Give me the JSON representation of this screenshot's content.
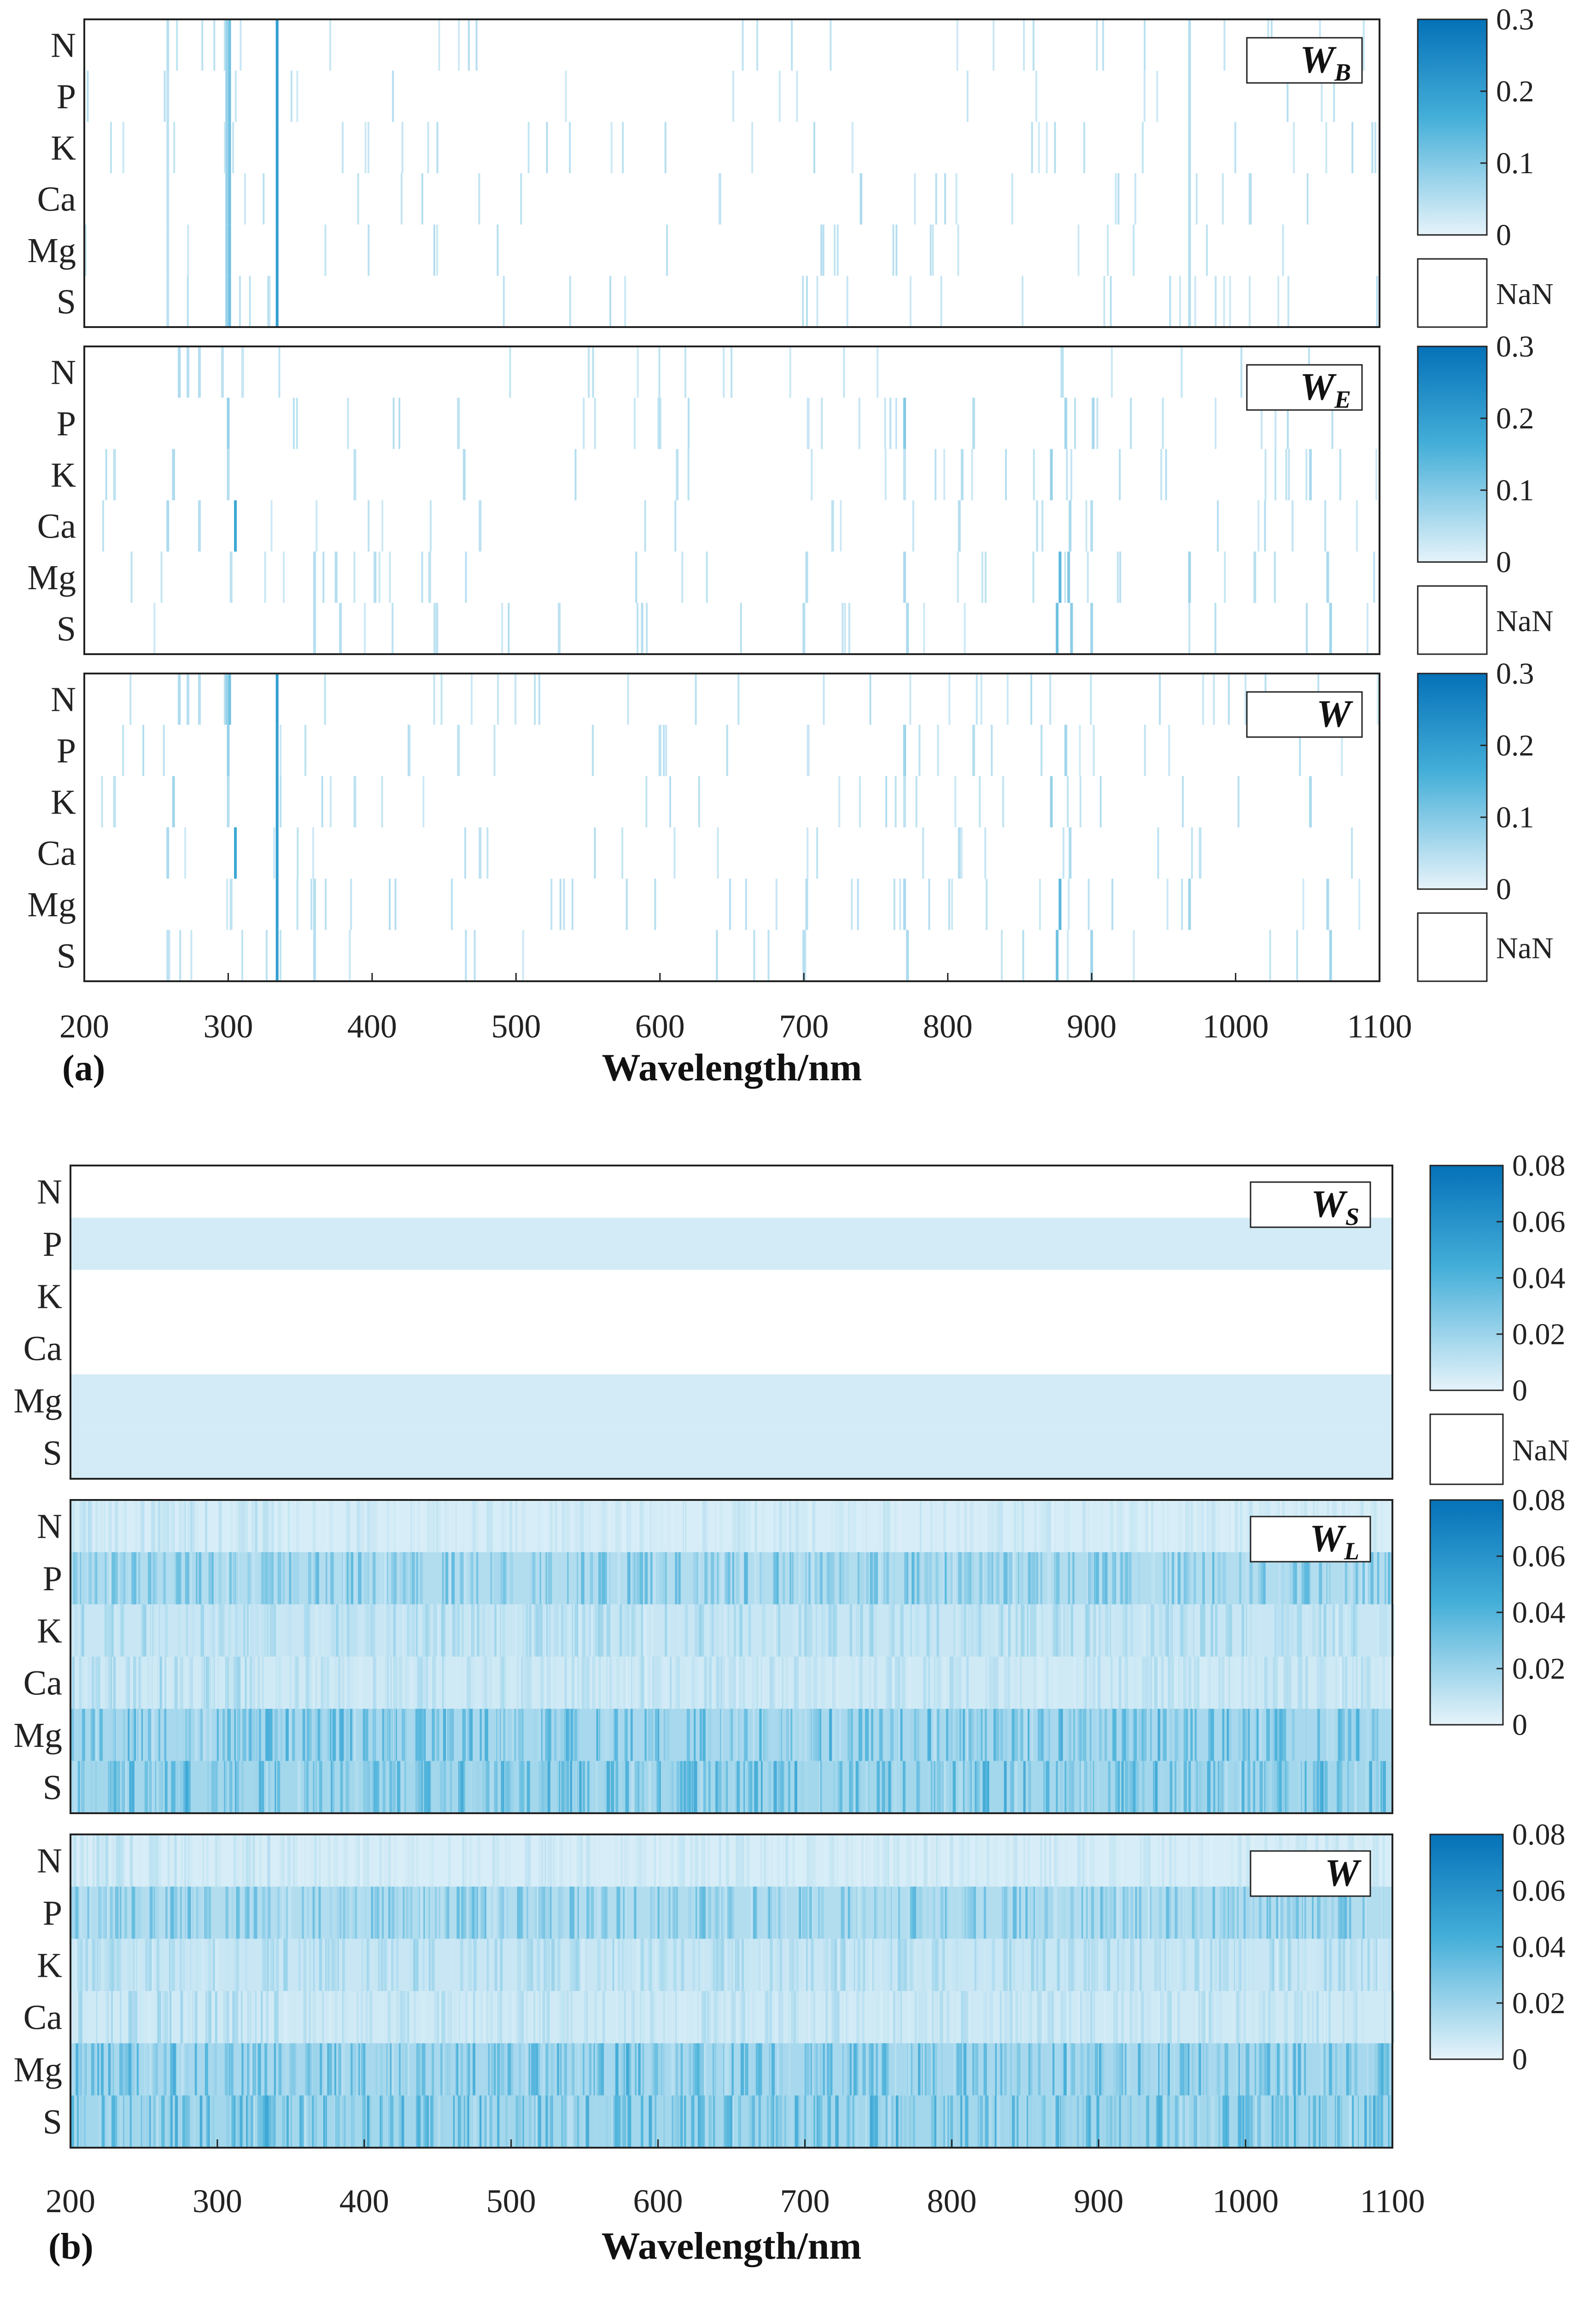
{
  "chart_data": [
    {
      "panel_label": "(a)",
      "type": "heatmap",
      "xlabel": "Wavelength/nm",
      "xlim": [
        200,
        1100
      ],
      "x_ticks": [
        "200",
        "300",
        "400",
        "500",
        "600",
        "700",
        "800",
        "900",
        "1000",
        "1100"
      ],
      "rows": [
        "N",
        "P",
        "K",
        "Ca",
        "Mg",
        "S"
      ],
      "colorbar": {
        "min": 0,
        "max": 0.3,
        "ticks": [
          "0.3",
          "0.2",
          "0.1",
          "0"
        ],
        "nan_label": "NaN"
      },
      "subplots": [
        {
          "legend_main": "W",
          "legend_sub": "B",
          "values": [
            [
              [
                258,
                0.04
              ],
              [
                299,
                0.08
              ],
              [
                301,
                0.12
              ],
              [
                334,
                0.2
              ],
              [
                968,
                0.05
              ]
            ],
            [
              [
                258,
                0.04
              ],
              [
                299,
                0.08
              ],
              [
                301,
                0.12
              ],
              [
                334,
                0.2
              ],
              [
                968,
                0.05
              ]
            ],
            [
              [
                258,
                0.04
              ],
              [
                299,
                0.08
              ],
              [
                301,
                0.12
              ],
              [
                334,
                0.2
              ],
              [
                968,
                0.05
              ]
            ],
            [
              [
                258,
                0.04
              ],
              [
                299,
                0.08
              ],
              [
                301,
                0.12
              ],
              [
                334,
                0.2
              ],
              [
                968,
                0.05
              ]
            ],
            [
              [
                258,
                0.04
              ],
              [
                299,
                0.08
              ],
              [
                301,
                0.12
              ],
              [
                334,
                0.2
              ],
              [
                968,
                0.05
              ]
            ],
            [
              [
                258,
                0.04
              ],
              [
                299,
                0.08
              ],
              [
                301,
                0.12
              ],
              [
                334,
                0.2
              ],
              [
                968,
                0.05
              ]
            ]
          ]
        },
        {
          "legend_main": "W",
          "legend_sub": "E",
          "values": [
            [
              [
                266,
                0.06
              ],
              [
                272,
                0.05
              ],
              [
                280,
                0.05
              ],
              [
                296,
                0.04
              ],
              [
                310,
                0.03
              ]
            ],
            [
              [
                300,
                0.08
              ],
              [
                460,
                0.04
              ],
              [
                600,
                0.04
              ],
              [
                703,
                0.03
              ],
              [
                770,
                0.1
              ],
              [
                818,
                0.05
              ],
              [
                882,
                0.07
              ],
              [
                901,
                0.06
              ]
            ],
            [
              [
                221,
                0.04
              ],
              [
                262,
                0.07
              ],
              [
                300,
                0.05
              ],
              [
                388,
                0.04
              ],
              [
                464,
                0.05
              ],
              [
                612,
                0.04
              ],
              [
                770,
                0.04
              ],
              [
                810,
                0.05
              ],
              [
                872,
                0.08
              ],
              [
                1052,
                0.06
              ]
            ],
            [
              [
                258,
                0.06
              ],
              [
                280,
                0.05
              ],
              [
                305,
                0.18
              ],
              [
                475,
                0.04
              ],
              [
                720,
                0.04
              ],
              [
                808,
                0.05
              ],
              [
                885,
                0.06
              ],
              [
                900,
                0.05
              ]
            ],
            [
              [
                302,
                0.04
              ],
              [
                360,
                0.05
              ],
              [
                375,
                0.05
              ],
              [
                402,
                0.05
              ],
              [
                440,
                0.04
              ],
              [
                702,
                0.05
              ],
              [
                770,
                0.06
              ],
              [
                878,
                0.14
              ],
              [
                884,
                0.1
              ],
              [
                968,
                0.07
              ],
              [
                1064,
                0.06
              ]
            ],
            [
              [
                360,
                0.05
              ],
              [
                378,
                0.05
              ],
              [
                445,
                0.04
              ],
              [
                530,
                0.04
              ],
              [
                700,
                0.05
              ],
              [
                772,
                0.06
              ],
              [
                876,
                0.12
              ],
              [
                886,
                0.09
              ],
              [
                900,
                0.07
              ],
              [
                1066,
                0.07
              ]
            ]
          ]
        },
        {
          "legend_main": "W",
          "legend_sub": "",
          "values": [
            [
              [
                266,
                0.06
              ],
              [
                272,
                0.05
              ],
              [
                280,
                0.05
              ],
              [
                299,
                0.08
              ],
              [
                301,
                0.12
              ],
              [
                334,
                0.2
              ]
            ],
            [
              [
                300,
                0.08
              ],
              [
                334,
                0.2
              ],
              [
                460,
                0.04
              ],
              [
                600,
                0.04
              ],
              [
                703,
                0.03
              ],
              [
                770,
                0.1
              ],
              [
                818,
                0.05
              ],
              [
                882,
                0.07
              ]
            ],
            [
              [
                221,
                0.04
              ],
              [
                262,
                0.07
              ],
              [
                300,
                0.05
              ],
              [
                334,
                0.2
              ],
              [
                388,
                0.04
              ],
              [
                770,
                0.04
              ],
              [
                872,
                0.08
              ],
              [
                1052,
                0.06
              ]
            ],
            [
              [
                258,
                0.06
              ],
              [
                305,
                0.18
              ],
              [
                334,
                0.2
              ],
              [
                475,
                0.04
              ],
              [
                808,
                0.05
              ],
              [
                885,
                0.06
              ]
            ],
            [
              [
                302,
                0.04
              ],
              [
                334,
                0.2
              ],
              [
                360,
                0.05
              ],
              [
                702,
                0.05
              ],
              [
                770,
                0.06
              ],
              [
                878,
                0.14
              ],
              [
                968,
                0.07
              ],
              [
                1064,
                0.06
              ]
            ],
            [
              [
                258,
                0.04
              ],
              [
                334,
                0.2
              ],
              [
                360,
                0.05
              ],
              [
                700,
                0.05
              ],
              [
                772,
                0.06
              ],
              [
                876,
                0.12
              ],
              [
                900,
                0.07
              ],
              [
                1066,
                0.07
              ]
            ]
          ]
        }
      ]
    },
    {
      "panel_label": "(b)",
      "type": "heatmap",
      "xlabel": "Wavelength/nm",
      "xlim": [
        200,
        1100
      ],
      "x_ticks": [
        "200",
        "300",
        "400",
        "500",
        "600",
        "700",
        "800",
        "900",
        "1000",
        "1100"
      ],
      "rows": [
        "N",
        "P",
        "K",
        "Ca",
        "Mg",
        "S"
      ],
      "colorbar": {
        "min": 0,
        "max": 0.08,
        "ticks": [
          "0.08",
          "0.06",
          "0.04",
          "0.02",
          "0"
        ],
        "nan_label": "NaN"
      },
      "subplots": [
        {
          "legend_main": "W",
          "legend_sub": "S",
          "row_levels": [
            0,
            0.01,
            0,
            0,
            0.01,
            0.01
          ]
        },
        {
          "legend_main": "W",
          "legend_sub": "L",
          "row_levels": [
            0.008,
            0.028,
            0.016,
            0.012,
            0.034,
            0.036
          ]
        },
        {
          "legend_main": "W",
          "legend_sub": "",
          "row_levels": [
            0.008,
            0.028,
            0.016,
            0.012,
            0.034,
            0.036
          ]
        }
      ]
    }
  ]
}
